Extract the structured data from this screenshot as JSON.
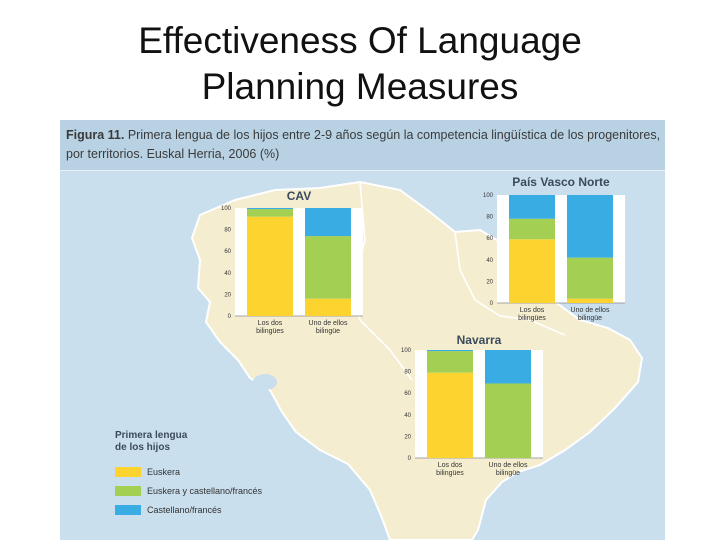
{
  "slide": {
    "title_line1": "Effectiveness Of Language",
    "title_line2": "Planning Measures"
  },
  "figure": {
    "caption_label": "Figura 11.",
    "caption_text": "Primera lengua de los hijos entre 2-9 años según la competencia lingüística de los progenitores, por territorios. Euskal Herria, 2006 (%)"
  },
  "legend": {
    "title_line1": "Primera lengua",
    "title_line2": "de los hijos",
    "items": [
      {
        "label": "Euskera",
        "color": "#fdd330"
      },
      {
        "label": "Euskera y castellano/francés",
        "color": "#a3cf52"
      },
      {
        "label": "Castellano/francés",
        "color": "#39ade3"
      }
    ]
  },
  "colors": {
    "euskera": "#fdd330",
    "both": "#a3cf52",
    "castellano": "#39ade3",
    "map_land": "#f4edd0",
    "map_border": "#ffffff",
    "background": "#c9dfee"
  },
  "chart_data": [
    {
      "type": "bar",
      "stacked": true,
      "title": "CAV",
      "categories": [
        "Los dos bilingües",
        "Uno de ellos bilingüe"
      ],
      "series": [
        {
          "name": "Euskera",
          "values": [
            92,
            16
          ]
        },
        {
          "name": "Euskera y castellano/francés",
          "values": [
            7,
            58
          ]
        },
        {
          "name": "Castellano/francés",
          "values": [
            1,
            26
          ]
        }
      ],
      "yticks": [
        "0",
        "20",
        "40",
        "60",
        "80",
        "100"
      ],
      "ylim": [
        0,
        100
      ]
    },
    {
      "type": "bar",
      "stacked": true,
      "title": "País Vasco Norte",
      "categories": [
        "Los dos bilingües",
        "Uno de ellos bilingüe"
      ],
      "series": [
        {
          "name": "Euskera",
          "values": [
            59,
            4
          ]
        },
        {
          "name": "Euskera y castellano/francés",
          "values": [
            19,
            38
          ]
        },
        {
          "name": "Castellano/francés",
          "values": [
            22,
            58
          ]
        }
      ],
      "yticks": [
        "0",
        "20",
        "40",
        "60",
        "80",
        "100"
      ],
      "ylim": [
        0,
        100
      ]
    },
    {
      "type": "bar",
      "stacked": true,
      "title": "Navarra",
      "categories": [
        "Los dos bilingües",
        "Uno de ellos bilingüe"
      ],
      "series": [
        {
          "name": "Euskera",
          "values": [
            79,
            0
          ]
        },
        {
          "name": "Euskera y castellano/francés",
          "values": [
            20,
            69
          ]
        },
        {
          "name": "Castellano/francés",
          "values": [
            1,
            31
          ]
        }
      ],
      "yticks": [
        "0",
        "20",
        "40",
        "60",
        "80",
        "100"
      ],
      "ylim": [
        0,
        100
      ]
    }
  ]
}
